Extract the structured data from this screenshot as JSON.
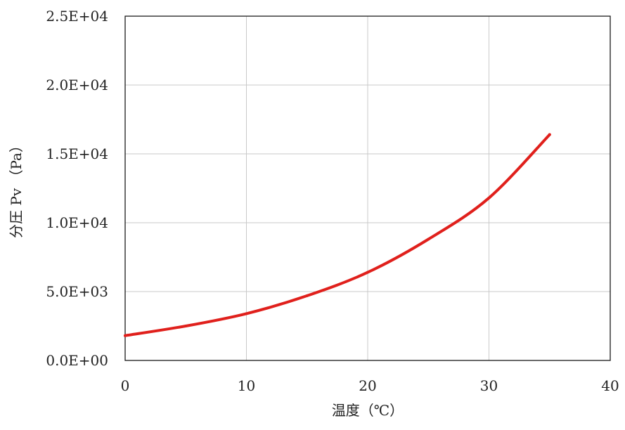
{
  "chart_data": {
    "type": "line",
    "title": "",
    "xlabel": "温度（℃）",
    "ylabel": "分圧 Pv （Pa）",
    "xlim": [
      0,
      40
    ],
    "ylim": [
      0,
      25000
    ],
    "x_ticks": [
      0,
      10,
      20,
      30,
      40
    ],
    "x_tick_labels": [
      "0",
      "10",
      "20",
      "30",
      "40"
    ],
    "y_ticks": [
      0,
      5000,
      10000,
      15000,
      20000,
      25000
    ],
    "y_tick_labels": [
      "0.0E+00",
      "5.0E+03",
      "1.0E+04",
      "1.5E+04",
      "2.0E+04",
      "2.5E+04"
    ],
    "grid": true,
    "legend": "none",
    "series": [
      {
        "color": "#e0201c",
        "x": [
          0,
          5,
          10,
          15,
          20,
          25,
          30,
          35
        ],
        "y": [
          1800,
          2500,
          3400,
          4700,
          6400,
          8800,
          11800,
          16400
        ]
      }
    ]
  }
}
